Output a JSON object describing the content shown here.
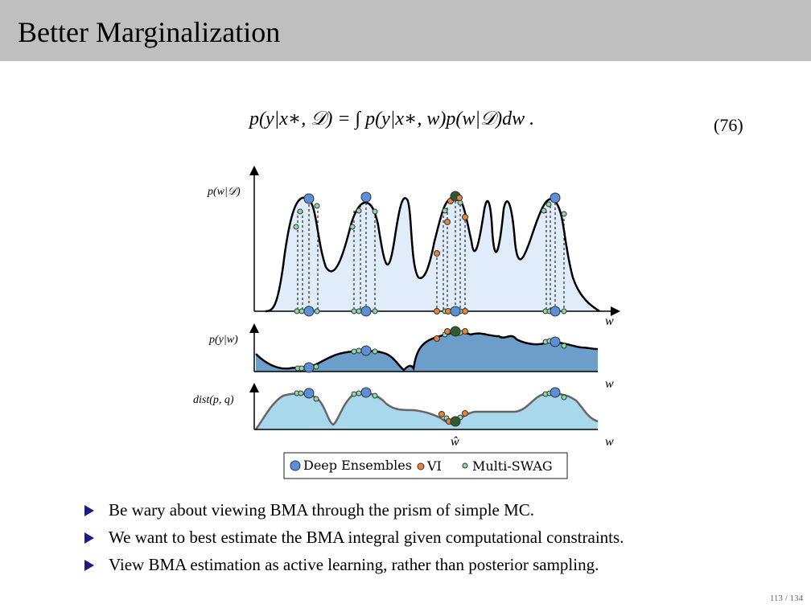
{
  "slide": {
    "title": "Better Marginalization",
    "equation": "p(y|x∗, 𝒟) = ∫ p(y|x∗, w)p(w|𝒟)dw .",
    "equation_number": "(76)",
    "page": "113 / 134"
  },
  "figure": {
    "panels": [
      {
        "ylabel": "p(w|𝒟)",
        "xlabel": "w"
      },
      {
        "ylabel": "p(y|w)",
        "xlabel": "w"
      },
      {
        "ylabel": "dist(p, q)",
        "xlabel": "w"
      }
    ],
    "w_hat_label": "ŵ",
    "legend": [
      {
        "label": "Deep Ensembles",
        "color": "#5b8fd9"
      },
      {
        "label": "VI",
        "color": "#e8843a"
      },
      {
        "label": "Multi-SWAG",
        "color": "#8fd9a8"
      }
    ]
  },
  "bullets": [
    "Be wary about viewing BMA through the prism of simple MC.",
    "We want to best estimate the BMA integral given computational constraints.",
    "View BMA estimation as active learning, rather than posterior sampling."
  ],
  "colors": {
    "header_bg": "#bfbfbf",
    "bullet": "#1a1a8c",
    "panel1_fill": "#e1ecfb",
    "panel2_fill": "#6d9ec9",
    "panel3_fill": "#a9d8ec"
  }
}
